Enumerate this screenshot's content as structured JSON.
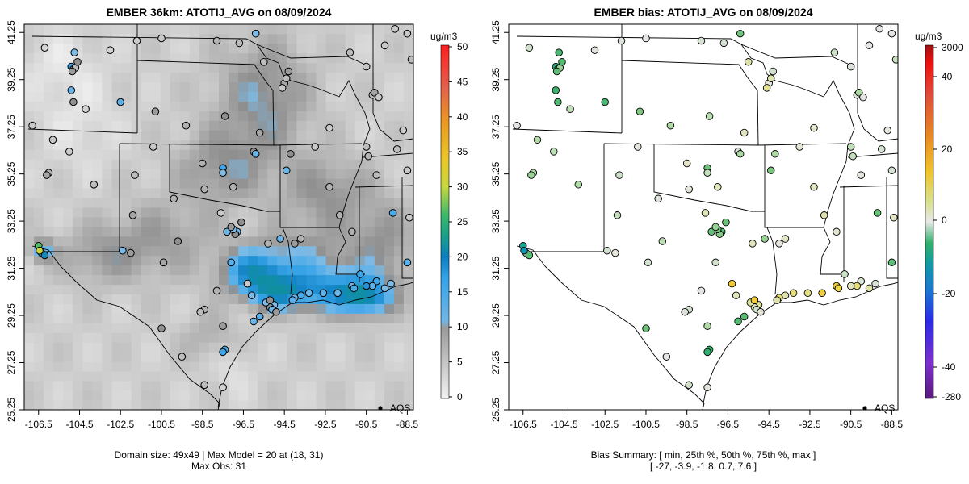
{
  "panels": [
    {
      "id": "left",
      "title": "EMBER 36km: ATOTIJ_AVG on 08/09/2024",
      "caption_lines": [
        "Domain size: 49x49 | Max Model = 20 at (18, 31)",
        "Max Obs: 31"
      ],
      "legend_label": "AQS"
    },
    {
      "id": "right",
      "title": "EMBER bias: ATOTIJ_AVG on 08/09/2024",
      "caption_lines": [
        "Bias Summary: [ min, 25th %, 50th %, 75th %, max ]",
        "[ -27,   -3.9,   -1.8,   0.7,   7.6 ]"
      ],
      "legend_label": "AQS"
    }
  ],
  "chart_data": [
    {
      "type": "heatmap",
      "title": "EMBER 36km: ATOTIJ_AVG on 08/09/2024",
      "xlabel": "",
      "ylabel": "",
      "xlim": [
        -107.2,
        -88.2
      ],
      "ylim": [
        25.25,
        41.6
      ],
      "x_ticks": [
        "-106.5",
        "-104.5",
        "-102.5",
        "-100.5",
        "-98.5",
        "-96.5",
        "-94.5",
        "-92.5",
        "-90.5",
        "-88.5"
      ],
      "y_ticks": [
        "41.25",
        "39.25",
        "37.25",
        "35.25",
        "33.25",
        "31.25",
        "29.25",
        "27.25",
        "25.25"
      ],
      "colorbar": {
        "unit": "ug/m3",
        "range": [
          0,
          50
        ],
        "ticks": [
          "50",
          "45",
          "40",
          "35",
          "30",
          "25",
          "20",
          "15",
          "10",
          "5",
          "0"
        ]
      },
      "summary": {
        "domain_size": "49x49",
        "max_model": 20,
        "max_model_cell": [
          18,
          31
        ],
        "max_obs": 31
      },
      "stations": [
        {
          "lon": -106.5,
          "lat": 32.2,
          "v": 25
        },
        {
          "lon": -106.35,
          "lat": 31.9,
          "v": 14
        },
        {
          "lon": -106.2,
          "lat": 31.8,
          "v": 18
        },
        {
          "lon": -106.45,
          "lat": 32.0,
          "v": 31
        },
        {
          "lon": -104.9,
          "lat": 39.8,
          "v": 14
        },
        {
          "lon": -104.8,
          "lat": 39.7,
          "v": 6
        },
        {
          "lon": -104.7,
          "lat": 39.75,
          "v": 5
        },
        {
          "lon": -104.85,
          "lat": 39.6,
          "v": 8
        },
        {
          "lon": -104.6,
          "lat": 40.0,
          "v": 9
        },
        {
          "lon": -104.75,
          "lat": 40.4,
          "v": 10
        },
        {
          "lon": -104.9,
          "lat": 38.8,
          "v": 11
        },
        {
          "lon": -104.8,
          "lat": 38.3,
          "v": 9
        },
        {
          "lon": -104.2,
          "lat": 38.0,
          "v": 3
        },
        {
          "lon": -102.5,
          "lat": 38.3,
          "v": 12
        },
        {
          "lon": -106.8,
          "lat": 37.3,
          "v": 4
        },
        {
          "lon": -105.0,
          "lat": 36.2,
          "v": 4
        },
        {
          "lon": -106.0,
          "lat": 35.3,
          "v": 6
        },
        {
          "lon": -106.1,
          "lat": 35.2,
          "v": 7
        },
        {
          "lon": -103.8,
          "lat": 34.8,
          "v": 5
        },
        {
          "lon": -105.8,
          "lat": 36.7,
          "v": 4
        },
        {
          "lon": -106.2,
          "lat": 40.6,
          "v": 3
        },
        {
          "lon": -103.0,
          "lat": 40.5,
          "v": 3
        },
        {
          "lon": -101.7,
          "lat": 40.9,
          "v": 4
        },
        {
          "lon": -100.5,
          "lat": 41.0,
          "v": 4
        },
        {
          "lon": -97.8,
          "lat": 40.9,
          "v": 6
        },
        {
          "lon": -96.7,
          "lat": 40.8,
          "v": 5
        },
        {
          "lon": -95.9,
          "lat": 41.2,
          "v": 10
        },
        {
          "lon": -95.5,
          "lat": 40.0,
          "v": 5
        },
        {
          "lon": -94.5,
          "lat": 39.1,
          "v": 7
        },
        {
          "lon": -94.6,
          "lat": 38.9,
          "v": 4
        },
        {
          "lon": -94.4,
          "lat": 39.3,
          "v": 5
        },
        {
          "lon": -94.3,
          "lat": 39.6,
          "v": 8
        },
        {
          "lon": -97.4,
          "lat": 37.7,
          "v": 9
        },
        {
          "lon": -95.7,
          "lat": 37.0,
          "v": 7
        },
        {
          "lon": -99.3,
          "lat": 37.3,
          "v": 6
        },
        {
          "lon": -100.8,
          "lat": 37.9,
          "v": 8
        },
        {
          "lon": -92.3,
          "lat": 37.2,
          "v": 4
        },
        {
          "lon": -90.2,
          "lat": 38.6,
          "v": 5
        },
        {
          "lon": -90.1,
          "lat": 38.7,
          "v": 7
        },
        {
          "lon": -89.9,
          "lat": 38.5,
          "v": 4
        },
        {
          "lon": -90.5,
          "lat": 39.8,
          "v": 4
        },
        {
          "lon": -91.3,
          "lat": 40.4,
          "v": 5
        },
        {
          "lon": -89.6,
          "lat": 40.7,
          "v": 4
        },
        {
          "lon": -88.3,
          "lat": 40.1,
          "v": 5
        },
        {
          "lon": -88.5,
          "lat": 41.2,
          "v": 4
        },
        {
          "lon": -89.1,
          "lat": 41.4,
          "v": 4
        },
        {
          "lon": -88.7,
          "lat": 37.1,
          "v": 4
        },
        {
          "lon": -89.0,
          "lat": 36.3,
          "v": 5
        },
        {
          "lon": -90.4,
          "lat": 36.0,
          "v": 6
        },
        {
          "lon": -90.0,
          "lat": 35.2,
          "v": 5
        },
        {
          "lon": -88.5,
          "lat": 35.4,
          "v": 4
        },
        {
          "lon": -88.4,
          "lat": 33.4,
          "v": 4
        },
        {
          "lon": -89.2,
          "lat": 33.6,
          "v": 13
        },
        {
          "lon": -88.5,
          "lat": 31.5,
          "v": 12
        },
        {
          "lon": -90.0,
          "lat": 30.7,
          "v": 14
        },
        {
          "lon": -90.2,
          "lat": 30.5,
          "v": 12
        },
        {
          "lon": -89.6,
          "lat": 30.4,
          "v": 10
        },
        {
          "lon": -89.3,
          "lat": 30.6,
          "v": 10
        },
        {
          "lon": -90.5,
          "lat": 30.5,
          "v": 16
        },
        {
          "lon": -90.8,
          "lat": 31.0,
          "v": 14
        },
        {
          "lon": -91.2,
          "lat": 30.5,
          "v": 11
        },
        {
          "lon": -91.1,
          "lat": 30.4,
          "v": 13
        },
        {
          "lon": -91.9,
          "lat": 30.2,
          "v": 11
        },
        {
          "lon": -92.6,
          "lat": 30.2,
          "v": 12
        },
        {
          "lon": -93.3,
          "lat": 30.2,
          "v": 11
        },
        {
          "lon": -93.7,
          "lat": 30.1,
          "v": 13
        },
        {
          "lon": -94.0,
          "lat": 30.0,
          "v": 11
        },
        {
          "lon": -94.1,
          "lat": 29.9,
          "v": 12
        },
        {
          "lon": -95.0,
          "lat": 29.7,
          "v": 10
        },
        {
          "lon": -95.2,
          "lat": 29.6,
          "v": 9
        },
        {
          "lon": -95.1,
          "lat": 29.5,
          "v": 11
        },
        {
          "lon": -95.4,
          "lat": 29.8,
          "v": 10
        },
        {
          "lon": -95.2,
          "lat": 29.9,
          "v": 9
        },
        {
          "lon": -94.9,
          "lat": 29.4,
          "v": 8
        },
        {
          "lon": -96.0,
          "lat": 29.0,
          "v": 11
        },
        {
          "lon": -97.4,
          "lat": 27.8,
          "v": 13
        },
        {
          "lon": -97.5,
          "lat": 27.7,
          "v": 14
        },
        {
          "lon": -97.5,
          "lat": 26.2,
          "v": 3
        },
        {
          "lon": -98.4,
          "lat": 26.3,
          "v": 5
        },
        {
          "lon": -97.8,
          "lat": 30.3,
          "v": 6
        },
        {
          "lon": -98.4,
          "lat": 29.5,
          "v": 6
        },
        {
          "lon": -98.6,
          "lat": 29.4,
          "v": 5
        },
        {
          "lon": -99.5,
          "lat": 27.5,
          "v": 5
        },
        {
          "lon": -100.5,
          "lat": 28.7,
          "v": 9
        },
        {
          "lon": -101.9,
          "lat": 33.5,
          "v": 7
        },
        {
          "lon": -102.4,
          "lat": 32.0,
          "v": 10
        },
        {
          "lon": -102.0,
          "lat": 31.9,
          "v": 8
        },
        {
          "lon": -100.4,
          "lat": 31.5,
          "v": 7
        },
        {
          "lon": -99.7,
          "lat": 32.4,
          "v": 9
        },
        {
          "lon": -97.6,
          "lat": 33.6,
          "v": 4
        },
        {
          "lon": -96.8,
          "lat": 32.8,
          "v": 11
        },
        {
          "lon": -96.9,
          "lat": 32.7,
          "v": 9
        },
        {
          "lon": -97.0,
          "lat": 32.9,
          "v": 10
        },
        {
          "lon": -97.3,
          "lat": 32.8,
          "v": 11
        },
        {
          "lon": -97.1,
          "lat": 33.0,
          "v": 8
        },
        {
          "lon": -96.6,
          "lat": 33.2,
          "v": 9
        },
        {
          "lon": -95.3,
          "lat": 32.3,
          "v": 6
        },
        {
          "lon": -94.7,
          "lat": 32.5,
          "v": 11
        },
        {
          "lon": -93.7,
          "lat": 32.5,
          "v": 6
        },
        {
          "lon": -94.0,
          "lat": 32.3,
          "v": 8
        },
        {
          "lon": -97.5,
          "lat": 35.5,
          "v": 14
        },
        {
          "lon": -97.5,
          "lat": 35.3,
          "v": 10
        },
        {
          "lon": -96.0,
          "lat": 36.2,
          "v": 9
        },
        {
          "lon": -95.9,
          "lat": 36.1,
          "v": 11
        },
        {
          "lon": -97.0,
          "lat": 34.7,
          "v": 6
        },
        {
          "lon": -98.4,
          "lat": 34.6,
          "v": 6
        },
        {
          "lon": -99.9,
          "lat": 34.2,
          "v": 6
        },
        {
          "lon": -98.5,
          "lat": 35.7,
          "v": 6
        },
        {
          "lon": -92.3,
          "lat": 34.7,
          "v": 6
        },
        {
          "lon": -94.4,
          "lat": 35.4,
          "v": 11
        },
        {
          "lon": -94.2,
          "lat": 36.1,
          "v": 9
        },
        {
          "lon": -93.0,
          "lat": 36.4,
          "v": 4
        },
        {
          "lon": -90.5,
          "lat": 36.4,
          "v": 5
        },
        {
          "lon": -91.8,
          "lat": 33.5,
          "v": 6
        },
        {
          "lon": -91.2,
          "lat": 32.8,
          "v": 6
        },
        {
          "lon": -96.3,
          "lat": 30.6,
          "v": 4
        },
        {
          "lon": -97.1,
          "lat": 31.5,
          "v": 12
        },
        {
          "lon": -97.5,
          "lat": 28.8,
          "v": 8
        },
        {
          "lon": -101.8,
          "lat": 35.2,
          "v": 5
        },
        {
          "lon": -100.9,
          "lat": 36.4,
          "v": 4
        },
        {
          "lon": -96.1,
          "lat": 30.1,
          "v": 10
        },
        {
          "lon": -95.7,
          "lat": 29.2,
          "v": 12
        }
      ]
    },
    {
      "type": "scatter",
      "title": "EMBER bias: ATOTIJ_AVG on 08/09/2024",
      "xlabel": "",
      "ylabel": "",
      "xlim": [
        -107.2,
        -88.2
      ],
      "ylim": [
        25.25,
        41.6
      ],
      "x_ticks": [
        "-106.5",
        "-104.5",
        "-102.5",
        "-100.5",
        "-98.5",
        "-96.5",
        "-94.5",
        "-92.5",
        "-90.5",
        "-88.5"
      ],
      "y_ticks": [
        "41.25",
        "39.25",
        "37.25",
        "35.25",
        "33.25",
        "31.25",
        "29.25",
        "27.25",
        "25.25"
      ],
      "colorbar": {
        "unit": "ug/m3",
        "range": [
          -280,
          3000
        ],
        "ticks": [
          "3000",
          "40",
          "20",
          "0",
          "-20",
          "-40",
          "-280"
        ]
      },
      "bias_summary": {
        "min": -27,
        "p25": -3.9,
        "p50": -1.8,
        "p75": 0.7,
        "max": 7.6
      }
    }
  ]
}
